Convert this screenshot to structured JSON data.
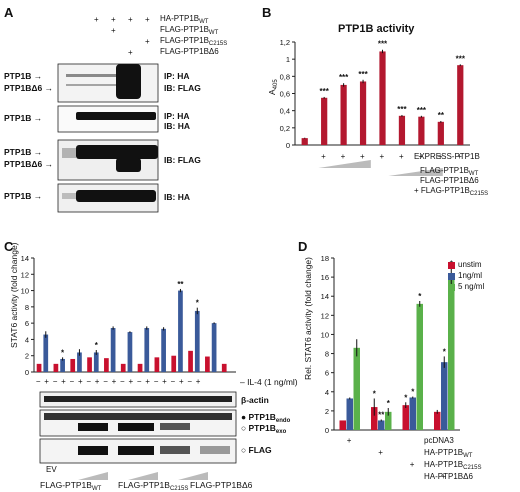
{
  "panels": {
    "A": {
      "letter": "A",
      "col_labels": [
        "HA-PTP1B_WT",
        "FLAG-PTP1B_WT",
        "FLAG-PTP1B_C215S",
        "FLAG-PTP1BΔ6"
      ],
      "plus_rows": [
        [
          false,
          true,
          true,
          true,
          true
        ],
        [
          false,
          false,
          true,
          false,
          false
        ],
        [
          false,
          false,
          false,
          false,
          true
        ],
        [
          false,
          false,
          false,
          true,
          false
        ]
      ],
      "blots": [
        {
          "left_labels": [
            "PTP1B",
            "PTP1BΔ6"
          ],
          "right_labels": [
            "IP: HA",
            "IB: FLAG"
          ]
        },
        {
          "left_labels": [
            "PTP1B"
          ],
          "right_labels": [
            "IP: HA",
            "IB: HA"
          ]
        },
        {
          "left_labels": [
            "PTP1B",
            "PTP1BΔ6"
          ],
          "right_labels": [
            "IB: FLAG"
          ]
        },
        {
          "left_labels": [
            "PTP1B"
          ],
          "right_labels": [
            "IB: HA"
          ]
        }
      ]
    },
    "B": {
      "letter": "B",
      "title": "PTP1B activity",
      "ylabel": "A405",
      "ylabel_main": "A",
      "ylabel_sub": "405",
      "row_labels": [
        "EXPRESS-PTP1B",
        "FLAG-PTP1B_WT",
        "FLAG-PTP1BΔ6",
        "+ FLAG-PTP1B_C215S"
      ],
      "plus_row": [
        "",
        "+",
        "+",
        "+",
        "+",
        "+",
        "+",
        "+",
        "+"
      ],
      "last_plus": "+"
    },
    "C": {
      "letter": "C",
      "ylabel": "STAT6 activity (fold change)",
      "il4_label": "IL-4 (1 ng/ml)",
      "plus_minus": [
        "−",
        "+",
        "−",
        "+",
        "−",
        "+",
        "−",
        "+",
        "−",
        "+",
        "−",
        "+",
        "−",
        "+",
        "−",
        "+",
        "−",
        "+",
        "−",
        "+"
      ],
      "blot_labels": [
        "β-actin",
        "PTP1Bendo",
        "PTP1Bexo",
        "FLAG"
      ],
      "blot_label_main": [
        "β-actin",
        "PTP1B",
        "PTP1B",
        "FLAG"
      ],
      "blot_label_sub": [
        "",
        "endo",
        "exo",
        ""
      ],
      "group_labels": [
        "EV",
        "FLAG-PTP1B_WT",
        "FLAG-PTP1B_C215S",
        "FLAG-PTP1BΔ6"
      ]
    },
    "D": {
      "letter": "D",
      "ylabel": "Rel. STAT6 activity (fold change)",
      "legend": [
        "unstim",
        "1ng/ml",
        "5 ng/ml"
      ],
      "row_labels": [
        "pcDNA3",
        "HA-PTP1B_WT",
        "HA-PTP1B_C215S",
        "HA-PTP1BΔ6"
      ],
      "plus": [
        "+",
        "+",
        "+",
        "+"
      ]
    }
  },
  "chart_data": [
    {
      "type": "bar",
      "title": "PTP1B activity",
      "ylabel": "A405",
      "ylim": [
        0,
        1.2
      ],
      "yticks": [
        0,
        0.2,
        0.4,
        0.6,
        0.8,
        1.0,
        1.2
      ],
      "ytick_labels": [
        "0",
        "0,2",
        "0,4",
        "0,6",
        "0,8",
        "1",
        "1,2"
      ],
      "values": [
        0.08,
        0.55,
        0.7,
        0.74,
        1.09,
        0.34,
        0.33,
        0.27,
        0.93
      ],
      "errors": [
        0.005,
        0.01,
        0.02,
        0.02,
        0.02,
        0.01,
        0.01,
        0.01,
        0.01
      ],
      "significance": [
        "",
        "***",
        "***",
        "***",
        "***",
        "***",
        "***",
        "**",
        "***"
      ],
      "color": "#b3182f"
    },
    {
      "type": "bar",
      "ylabel": "STAT6 activity (fold change)",
      "ylim": [
        0,
        14
      ],
      "yticks": [
        0,
        2,
        4,
        6,
        8,
        10,
        12,
        14
      ],
      "series": [
        {
          "color": "#c8102e",
          "values": [
            1.0,
            1.0,
            1.6,
            1.8,
            1.7,
            1.0,
            1.0,
            1.8,
            2.0,
            2.6,
            1.9,
            1.0
          ]
        },
        {
          "color": "#3a5a9a",
          "values": [
            4.6,
            1.6,
            2.4,
            2.4,
            5.4,
            4.9,
            5.4,
            5.3,
            10.0,
            7.5,
            6.0,
            0
          ]
        }
      ],
      "errors": [
        0.4,
        0.2,
        0.4,
        0.3,
        0.2,
        0.1,
        0.2,
        0.2,
        0.2,
        0.4,
        0.1,
        0
      ],
      "significance": [
        "",
        "*",
        "",
        "*",
        "",
        "",
        "",
        "",
        "**",
        "*",
        "",
        ""
      ]
    },
    {
      "type": "bar",
      "ylabel": "Rel. STAT6 activity (fold change)",
      "ylim": [
        0,
        18
      ],
      "yticks": [
        0,
        2,
        4,
        6,
        8,
        10,
        12,
        14,
        16,
        18
      ],
      "categories": [
        "pcDNA3",
        "HA-PTP1B_WT",
        "HA-PTP1B_C215S",
        "HA-PTP1BΔ6"
      ],
      "series": [
        {
          "name": "unstim",
          "color": "#c8102e",
          "values": [
            1.0,
            2.4,
            2.6,
            1.9
          ]
        },
        {
          "name": "1ng/ml",
          "color": "#3a5a9a",
          "values": [
            3.3,
            1.0,
            3.4,
            7.1
          ]
        },
        {
          "name": "5 ng/ml",
          "color": "#5ab14a",
          "values": [
            8.6,
            1.9,
            13.2,
            15.8
          ]
        }
      ],
      "errors": [
        [
          0,
          0.9,
          0.3,
          0.2
        ],
        [
          0.1,
          0.1,
          0.1,
          0.6
        ],
        [
          0.9,
          0.4,
          0.3,
          1.1
        ]
      ],
      "significance": [
        [
          "",
          "*",
          "*",
          ""
        ],
        [
          "",
          "**",
          "*",
          "*"
        ],
        [
          "",
          "*",
          "*",
          "*"
        ]
      ]
    }
  ]
}
